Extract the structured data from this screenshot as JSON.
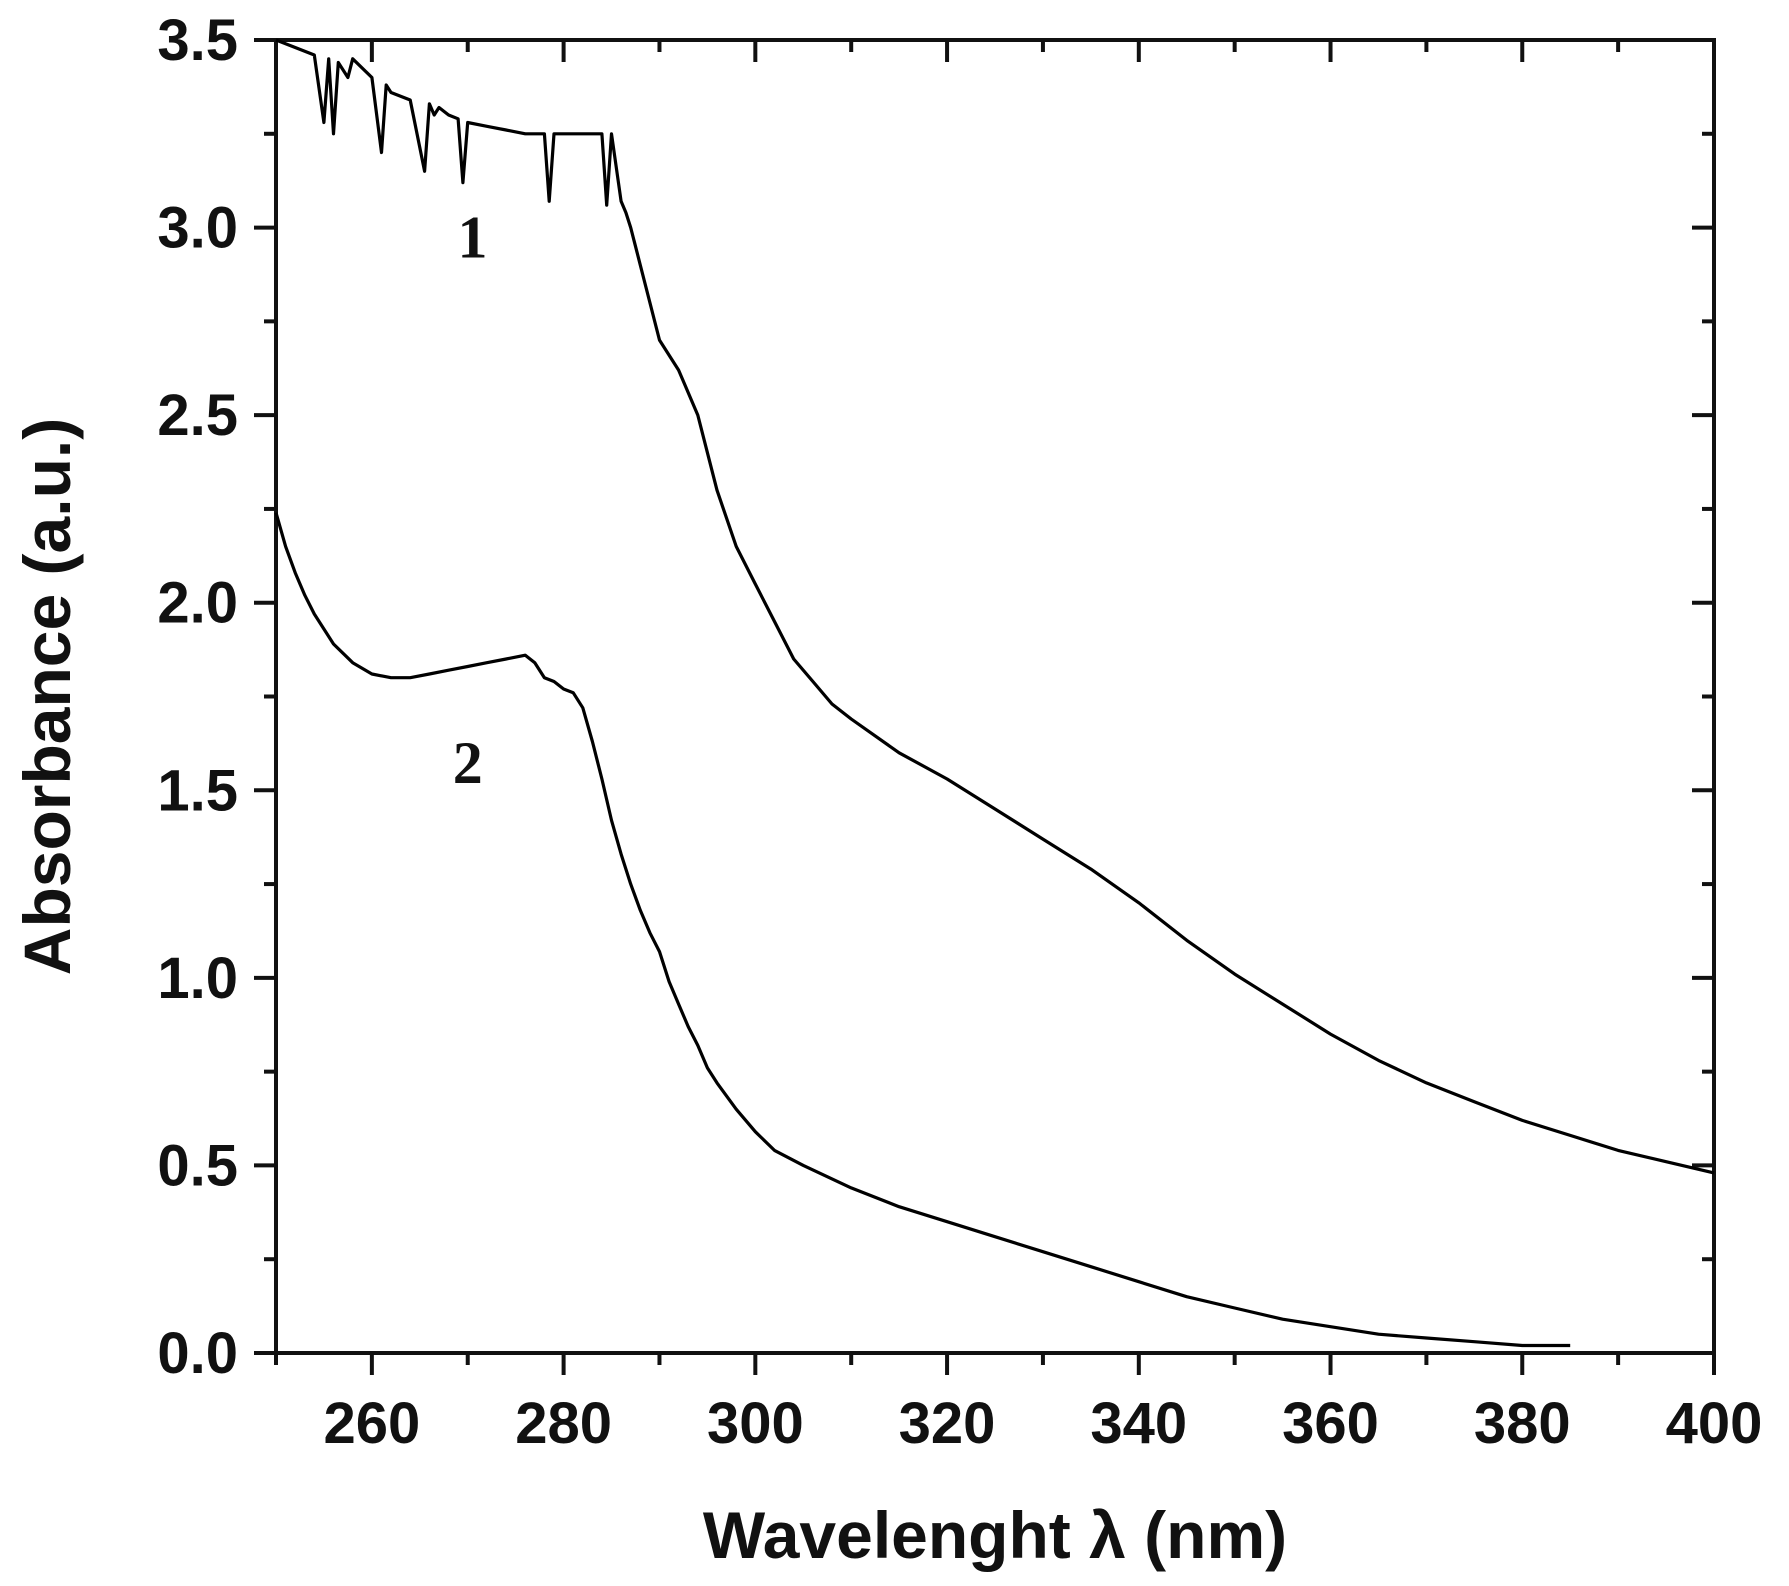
{
  "chart_data": {
    "type": "line",
    "title": "",
    "xlabel": "Wavelenght λ (nm)",
    "ylabel": "Absorbance (a.u.)",
    "xlim": [
      250,
      400
    ],
    "ylim": [
      0,
      3.5
    ],
    "xticks": [
      260,
      280,
      300,
      320,
      340,
      360,
      380,
      400
    ],
    "yticks": [
      0.0,
      0.5,
      1.0,
      1.5,
      2.0,
      2.5,
      3.0,
      3.5
    ],
    "xtick_labels": [
      "260",
      "280",
      "300",
      "320",
      "340",
      "360",
      "380",
      "400"
    ],
    "ytick_labels": [
      "0.0",
      "0.5",
      "1.0",
      "1.5",
      "2.0",
      "2.5",
      "3.0",
      "3.5"
    ],
    "grid": false,
    "series": [
      {
        "name": "1",
        "label": "1",
        "label_pos": [
          270.5,
          2.92
        ],
        "x": [
          250,
          252,
          254,
          255,
          255.5,
          256,
          256.5,
          257,
          257.5,
          258,
          260,
          261,
          261.5,
          262,
          264,
          265.5,
          266,
          266.5,
          267,
          268,
          269,
          269.5,
          270,
          272,
          274,
          276,
          277,
          278,
          278.5,
          279,
          280,
          282,
          284,
          284.5,
          285,
          286,
          286.5,
          287,
          287.5,
          288,
          289,
          290,
          292,
          294,
          296,
          298,
          300,
          302,
          304,
          306,
          308,
          310,
          315,
          320,
          325,
          330,
          335,
          340,
          345,
          350,
          355,
          360,
          365,
          370,
          375,
          380,
          385,
          390,
          395,
          400
        ],
        "y": [
          3.5,
          3.48,
          3.46,
          3.28,
          3.45,
          3.25,
          3.44,
          3.42,
          3.4,
          3.45,
          3.4,
          3.2,
          3.38,
          3.36,
          3.34,
          3.15,
          3.33,
          3.3,
          3.32,
          3.3,
          3.29,
          3.12,
          3.28,
          3.27,
          3.26,
          3.25,
          3.25,
          3.25,
          3.07,
          3.25,
          3.25,
          3.25,
          3.25,
          3.06,
          3.25,
          3.07,
          3.04,
          3.0,
          2.95,
          2.9,
          2.8,
          2.7,
          2.62,
          2.5,
          2.3,
          2.15,
          2.05,
          1.95,
          1.85,
          1.79,
          1.73,
          1.69,
          1.6,
          1.53,
          1.45,
          1.37,
          1.29,
          1.2,
          1.1,
          1.01,
          0.93,
          0.85,
          0.78,
          0.72,
          0.67,
          0.62,
          0.58,
          0.54,
          0.51,
          0.48
        ]
      },
      {
        "name": "2",
        "label": "2",
        "label_pos": [
          270,
          1.52
        ],
        "x": [
          250,
          251,
          252,
          253,
          254,
          255,
          256,
          258,
          260,
          262,
          264,
          266,
          268,
          270,
          272,
          274,
          276,
          277,
          278,
          279,
          280,
          281,
          282,
          283,
          284,
          285,
          286,
          287,
          288,
          289,
          290,
          291,
          292,
          293,
          294,
          295,
          296,
          298,
          300,
          302,
          305,
          310,
          315,
          320,
          325,
          330,
          335,
          340,
          345,
          350,
          355,
          360,
          365,
          370,
          375,
          380,
          385
        ],
        "y": [
          2.24,
          2.15,
          2.08,
          2.02,
          1.97,
          1.93,
          1.89,
          1.84,
          1.81,
          1.8,
          1.8,
          1.81,
          1.82,
          1.83,
          1.84,
          1.85,
          1.86,
          1.84,
          1.8,
          1.79,
          1.77,
          1.76,
          1.72,
          1.63,
          1.53,
          1.42,
          1.33,
          1.25,
          1.18,
          1.12,
          1.07,
          0.99,
          0.93,
          0.87,
          0.82,
          0.76,
          0.72,
          0.65,
          0.59,
          0.54,
          0.5,
          0.44,
          0.39,
          0.35,
          0.31,
          0.27,
          0.23,
          0.19,
          0.15,
          0.12,
          0.09,
          0.07,
          0.05,
          0.04,
          0.03,
          0.02,
          0.02
        ]
      }
    ]
  }
}
